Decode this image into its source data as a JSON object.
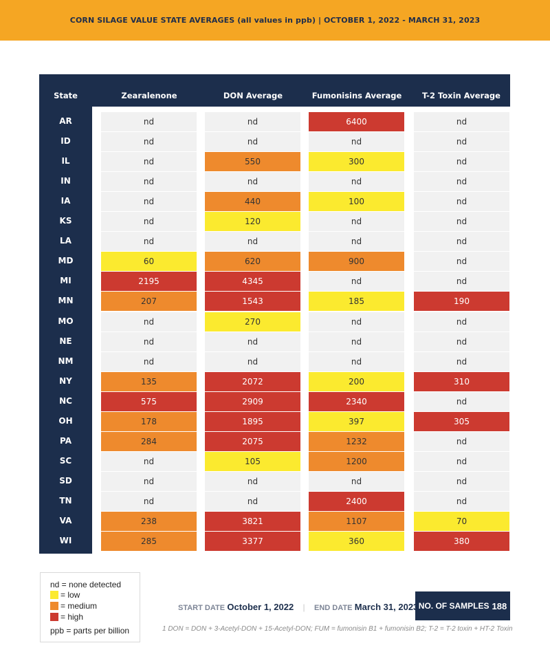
{
  "header": {
    "title": "CORN SILAGE VALUE STATE AVERAGES (all values in ppb) | OCTOBER 1, 2022 - MARCH 31, 2023"
  },
  "colors": {
    "banner": "#f5a623",
    "navy": "#1c2e4c",
    "nd": "#f1f1f1",
    "low": "#fbea2f",
    "medium": "#ee8a2d",
    "high": "#cc3a30"
  },
  "chart_data": {
    "type": "table",
    "columns": [
      "State",
      "Zearalenone",
      "DON Average",
      "Fumonisins Average",
      "T-2 Toxin Average"
    ],
    "rows": [
      {
        "state": "AR",
        "values": [
          "nd",
          "nd",
          "6400",
          "nd"
        ],
        "levels": [
          "nd",
          "nd",
          "high",
          "nd"
        ]
      },
      {
        "state": "ID",
        "values": [
          "nd",
          "nd",
          "nd",
          "nd"
        ],
        "levels": [
          "nd",
          "nd",
          "nd",
          "nd"
        ]
      },
      {
        "state": "IL",
        "values": [
          "nd",
          "550",
          "300",
          "nd"
        ],
        "levels": [
          "nd",
          "medium",
          "low",
          "nd"
        ]
      },
      {
        "state": "IN",
        "values": [
          "nd",
          "nd",
          "nd",
          "nd"
        ],
        "levels": [
          "nd",
          "nd",
          "nd",
          "nd"
        ]
      },
      {
        "state": "IA",
        "values": [
          "nd",
          "440",
          "100",
          "nd"
        ],
        "levels": [
          "nd",
          "medium",
          "low",
          "nd"
        ]
      },
      {
        "state": "KS",
        "values": [
          "nd",
          "120",
          "nd",
          "nd"
        ],
        "levels": [
          "nd",
          "low",
          "nd",
          "nd"
        ]
      },
      {
        "state": "LA",
        "values": [
          "nd",
          "nd",
          "nd",
          "nd"
        ],
        "levels": [
          "nd",
          "nd",
          "nd",
          "nd"
        ]
      },
      {
        "state": "MD",
        "values": [
          "60",
          "620",
          "900",
          "nd"
        ],
        "levels": [
          "low",
          "medium",
          "medium",
          "nd"
        ]
      },
      {
        "state": "MI",
        "values": [
          "2195",
          "4345",
          "nd",
          "nd"
        ],
        "levels": [
          "high",
          "high",
          "nd",
          "nd"
        ]
      },
      {
        "state": "MN",
        "values": [
          "207",
          "1543",
          "185",
          "190"
        ],
        "levels": [
          "medium",
          "high",
          "low",
          "high"
        ]
      },
      {
        "state": "MO",
        "values": [
          "nd",
          "270",
          "nd",
          "nd"
        ],
        "levels": [
          "nd",
          "low",
          "nd",
          "nd"
        ]
      },
      {
        "state": "NE",
        "values": [
          "nd",
          "nd",
          "nd",
          "nd"
        ],
        "levels": [
          "nd",
          "nd",
          "nd",
          "nd"
        ]
      },
      {
        "state": "NM",
        "values": [
          "nd",
          "nd",
          "nd",
          "nd"
        ],
        "levels": [
          "nd",
          "nd",
          "nd",
          "nd"
        ]
      },
      {
        "state": "NY",
        "values": [
          "135",
          "2072",
          "200",
          "310"
        ],
        "levels": [
          "medium",
          "high",
          "low",
          "high"
        ]
      },
      {
        "state": "NC",
        "values": [
          "575",
          "2909",
          "2340",
          "nd"
        ],
        "levels": [
          "high",
          "high",
          "high",
          "nd"
        ]
      },
      {
        "state": "OH",
        "values": [
          "178",
          "1895",
          "397",
          "305"
        ],
        "levels": [
          "medium",
          "high",
          "low",
          "high"
        ]
      },
      {
        "state": "PA",
        "values": [
          "284",
          "2075",
          "1232",
          "nd"
        ],
        "levels": [
          "medium",
          "high",
          "medium",
          "nd"
        ]
      },
      {
        "state": "SC",
        "values": [
          "nd",
          "105",
          "1200",
          "nd"
        ],
        "levels": [
          "nd",
          "low",
          "medium",
          "nd"
        ]
      },
      {
        "state": "SD",
        "values": [
          "nd",
          "nd",
          "nd",
          "nd"
        ],
        "levels": [
          "nd",
          "nd",
          "nd",
          "nd"
        ]
      },
      {
        "state": "TN",
        "values": [
          "nd",
          "nd",
          "2400",
          "nd"
        ],
        "levels": [
          "nd",
          "nd",
          "high",
          "nd"
        ]
      },
      {
        "state": "VA",
        "values": [
          "238",
          "3821",
          "1107",
          "70"
        ],
        "levels": [
          "medium",
          "high",
          "medium",
          "low"
        ]
      },
      {
        "state": "WI",
        "values": [
          "285",
          "3377",
          "360",
          "380"
        ],
        "levels": [
          "medium",
          "high",
          "low",
          "high"
        ]
      }
    ]
  },
  "legend": {
    "nd": "nd  = none detected",
    "low": "= low",
    "medium": "= medium",
    "high": "= high",
    "ppb": "ppb = parts per billion"
  },
  "footer": {
    "start_label": "START DATE",
    "start_value": "October 1, 2022",
    "separator": "|",
    "end_label": "END DATE",
    "end_value": "March 31, 2023",
    "samples_label": "NO. OF SAMPLES",
    "samples_value": "188",
    "footnote": "1 DON = DON + 3-Acetyl-DON + 15-Acetyl-DON; FUM = fumonisin B1 + fumonisin B2; T-2 = T-2 toxin + HT-2 Toxin"
  }
}
